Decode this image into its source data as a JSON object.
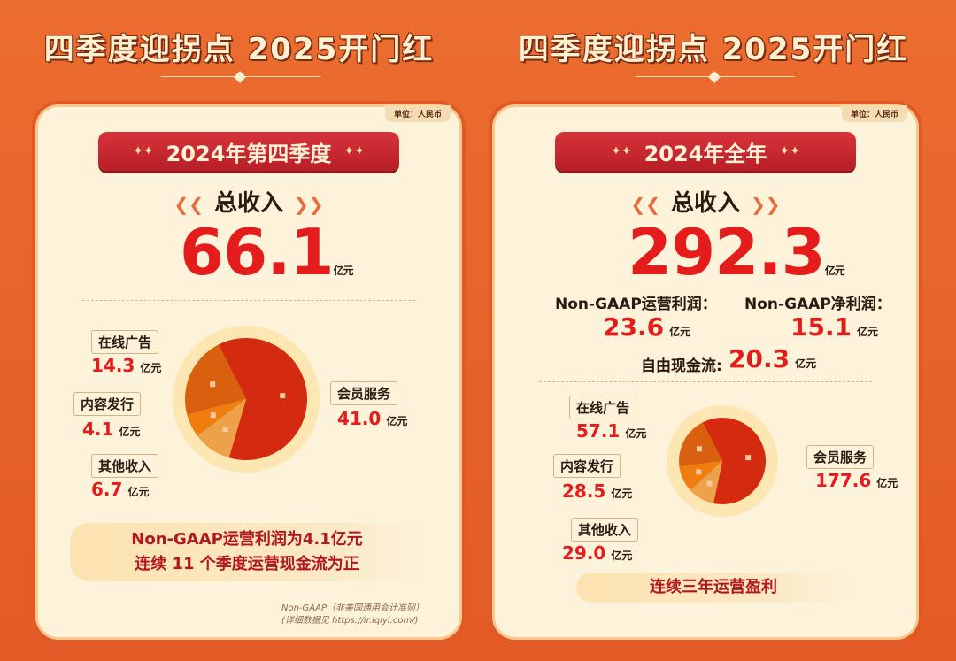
{
  "headline": "四季度迎拐点 2025开门红",
  "unit": "单位：人民币",
  "unit_suffix": "亿元",
  "colors": {
    "member": "#d42a10",
    "ad": "#d9600e",
    "content": "#f07d10",
    "other": "#eda24a",
    "accent": "#e51c1c"
  },
  "left": {
    "banner": "2024年第四季度",
    "total_label": "总收入",
    "total_value": "66.1",
    "segments": [
      {
        "label": "在线广告",
        "value": "14.3"
      },
      {
        "label": "内容发行",
        "value": "4.1"
      },
      {
        "label": "其他收入",
        "value": "6.7"
      },
      {
        "label": "会员服务",
        "value": "41.0"
      }
    ],
    "note_line1": "Non-GAAP运营利润为4.1亿元",
    "note_line2": "连续 11 个季度运营现金流为正",
    "footnote1": "Non-GAAP（非美国通用会计准则）",
    "footnote2": "(详细数据见 https://ir.iqiyi.com/)"
  },
  "right": {
    "banner": "2024年全年",
    "total_label": "总收入",
    "total_value": "292.3",
    "op_profit_label": "Non-GAAP运营利润：",
    "op_profit_value": "23.6",
    "net_profit_label": "Non-GAAP净利润：",
    "net_profit_value": "15.1",
    "fcf_label": "自由现金流:",
    "fcf_value": "20.3",
    "segments": [
      {
        "label": "在线广告",
        "value": "57.1"
      },
      {
        "label": "内容发行",
        "value": "28.5"
      },
      {
        "label": "其他收入",
        "value": "29.0"
      },
      {
        "label": "会员服务",
        "value": "177.6"
      }
    ],
    "note": "连续三年运营盈利"
  },
  "chart_data": [
    {
      "type": "pie",
      "title": "2024年第四季度",
      "categories": [
        "会员服务",
        "其他收入",
        "内容发行",
        "在线广告"
      ],
      "values": [
        41.0,
        6.7,
        4.1,
        14.3
      ]
    },
    {
      "type": "pie",
      "title": "2024年全年",
      "categories": [
        "会员服务",
        "其他收入",
        "内容发行",
        "在线广告"
      ],
      "values": [
        177.6,
        29.0,
        28.5,
        57.1
      ]
    }
  ]
}
